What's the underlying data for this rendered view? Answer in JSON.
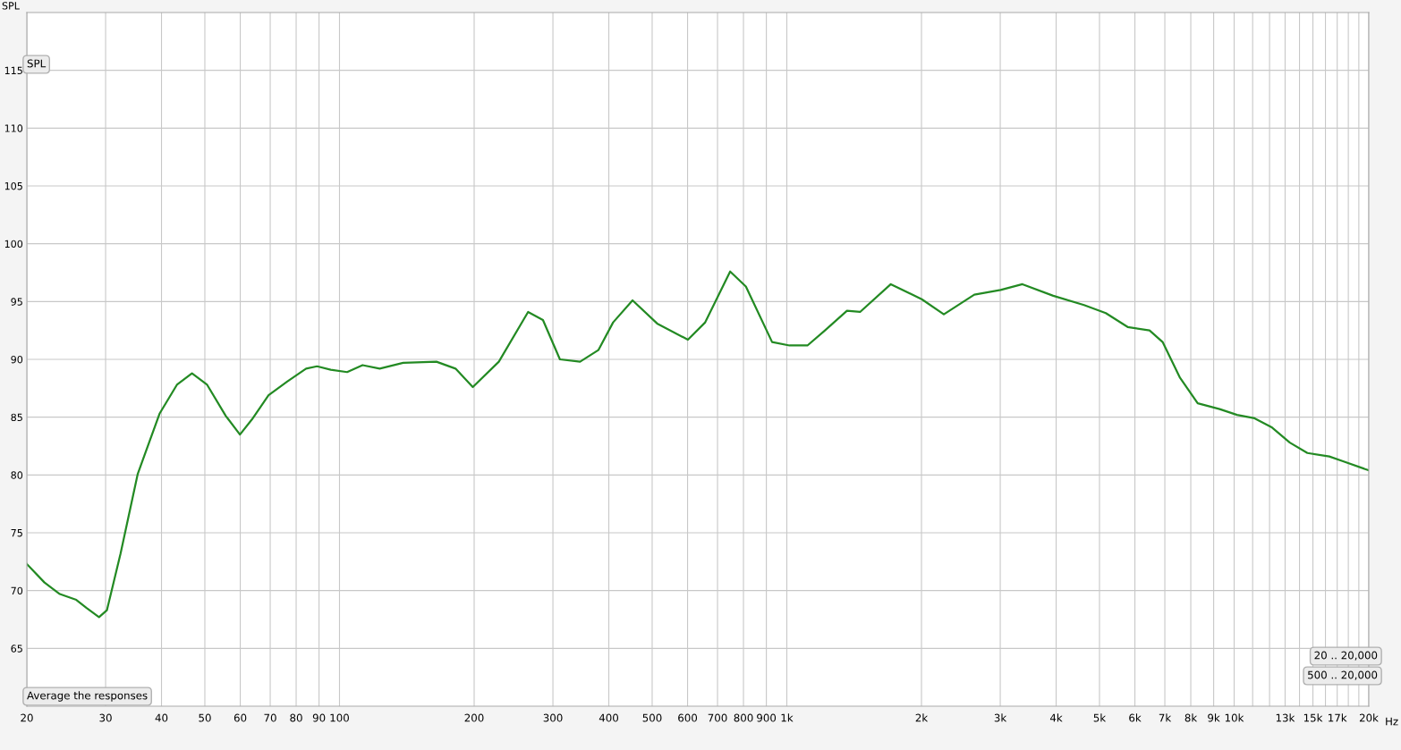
{
  "chart_data": {
    "type": "line",
    "ylabel": "SPL",
    "x": [
      20,
      21.9,
      23.7,
      25.8,
      27.2,
      29.0,
      30.2,
      32.4,
      35.4,
      39.6,
      43.3,
      46.8,
      50.6,
      55.7,
      59.9,
      63.7,
      69.4,
      76.5,
      84.2,
      89.1,
      95.6,
      104,
      112.6,
      123,
      138.8,
      164.7,
      181.7,
      198.6,
      227.1,
      264,
      285,
      311,
      345,
      379,
      409,
      452,
      513,
      601,
      657,
      747,
      810,
      927,
      1014,
      1112,
      1217,
      1363,
      1458,
      1708,
      2003,
      2244,
      2625,
      3005,
      3363,
      3941,
      4618,
      5165,
      5780,
      6470,
      6920,
      7570,
      8290,
      9280,
      10150,
      11110,
      12160,
      13320,
      14580,
      16320,
      17460,
      20000
    ],
    "series": [
      {
        "color": "#238a23",
        "values": [
          72.3,
          70.7,
          69.7,
          69.2,
          68.5,
          67.7,
          68.3,
          73.2,
          80.1,
          85.3,
          87.8,
          88.8,
          87.8,
          85.1,
          83.5,
          84.8,
          86.9,
          88.1,
          89.2,
          89.4,
          89.1,
          88.9,
          89.5,
          89.2,
          89.7,
          89.8,
          89.2,
          87.6,
          89.8,
          94.1,
          93.4,
          90.0,
          89.8,
          90.8,
          93.2,
          95.1,
          93.1,
          91.7,
          93.2,
          97.6,
          96.3,
          91.5,
          91.2,
          91.2,
          92.5,
          94.2,
          94.1,
          96.5,
          95.2,
          93.9,
          95.6,
          96.0,
          96.5,
          95.5,
          94.7,
          94.0,
          92.8,
          92.5,
          91.5,
          88.4,
          86.2,
          85.7,
          85.2,
          84.9,
          84.1,
          82.8,
          81.9,
          81.6,
          81.2,
          80.4
        ]
      }
    ],
    "log": "x",
    "xlim": [
      20,
      20000
    ],
    "ylim": [
      60,
      120
    ],
    "xticks": [
      20,
      30,
      40,
      50,
      60,
      70,
      80,
      90,
      100,
      200,
      300,
      400,
      500,
      600,
      700,
      800,
      900,
      {
        "value": 1000,
        "label": "1k"
      },
      {
        "value": 2000,
        "label": "2k"
      },
      {
        "value": 3000,
        "label": "3k"
      },
      {
        "value": 4000,
        "label": "4k"
      },
      {
        "value": 5000,
        "label": "5k"
      },
      {
        "value": 6000,
        "label": "6k"
      },
      {
        "value": 7000,
        "label": "7k"
      },
      {
        "value": 8000,
        "label": "8k"
      },
      {
        "value": 9000,
        "label": "9k"
      },
      {
        "value": 10000,
        "label": "10k"
      },
      {
        "value": 11000,
        "label": null
      },
      {
        "value": 12000,
        "label": null
      },
      {
        "value": 13000,
        "label": "13k"
      },
      {
        "value": 14000,
        "label": null
      },
      {
        "value": 15000,
        "label": "15k"
      },
      {
        "value": 16000,
        "label": null
      },
      {
        "value": 17000,
        "label": "17k"
      },
      {
        "value": 18000,
        "label": null
      },
      {
        "value": 19000,
        "label": null
      },
      {
        "value": 20000,
        "label": "20k"
      }
    ],
    "xlabel": "Hz",
    "yticks": [
      65,
      70,
      75,
      80,
      85,
      90,
      95,
      100,
      105,
      110,
      115
    ],
    "grid": true,
    "marker": "none",
    "line_style": "solid",
    "annotations": [
      "SPL",
      "Average the responses",
      "20 .. 20,000",
      "500 .. 20,000"
    ]
  }
}
